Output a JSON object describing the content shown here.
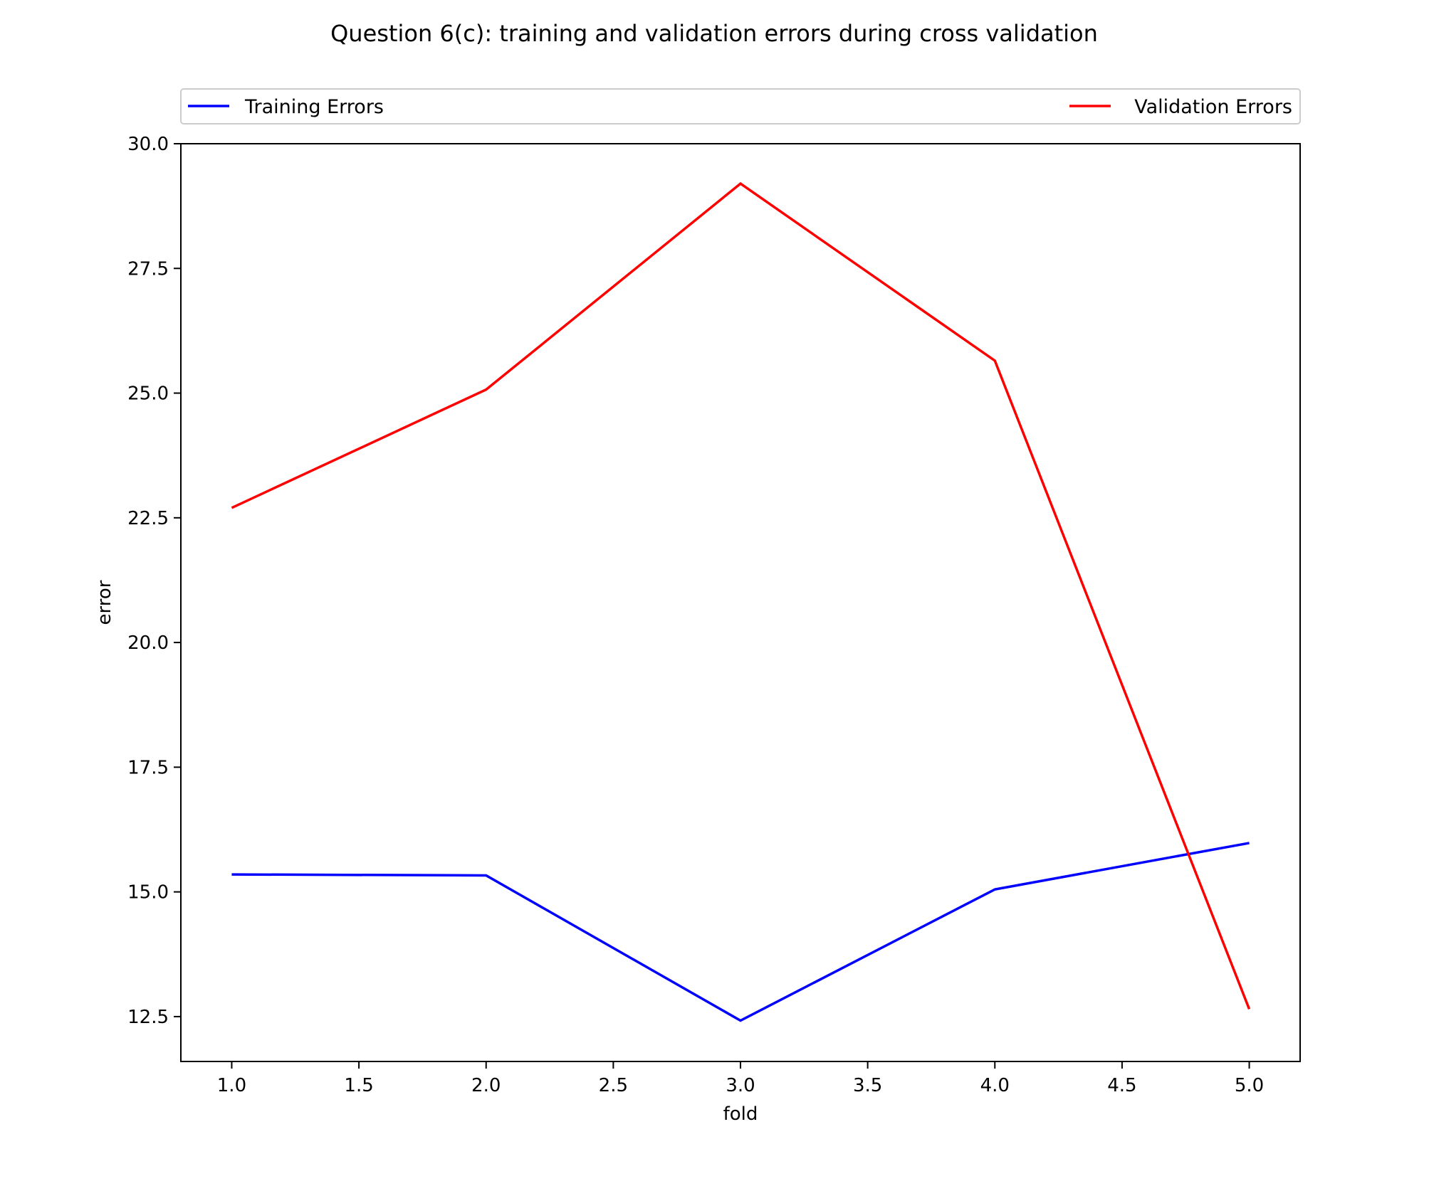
{
  "chart_data": {
    "type": "line",
    "title": "Question 6(c): training and validation errors during cross validation",
    "xlabel": "fold",
    "ylabel": "error",
    "x": [
      1.0,
      2.0,
      3.0,
      4.0,
      5.0
    ],
    "xlim": [
      0.8,
      5.2
    ],
    "ylim": [
      11.6,
      30.0
    ],
    "xticks": [
      1.0,
      1.5,
      2.0,
      2.5,
      3.0,
      3.5,
      4.0,
      4.5,
      5.0
    ],
    "xtick_labels": [
      "1.0",
      "1.5",
      "2.0",
      "2.5",
      "3.0",
      "3.5",
      "4.0",
      "4.5",
      "5.0"
    ],
    "yticks": [
      12.5,
      15.0,
      17.5,
      20.0,
      22.5,
      25.0,
      27.5,
      30.0
    ],
    "ytick_labels": [
      "12.5",
      "15.0",
      "17.5",
      "20.0",
      "22.5",
      "25.0",
      "27.5",
      "30.0"
    ],
    "grid": false,
    "legend_position": "top, spanning plot width",
    "series": [
      {
        "name": "Training Errors",
        "color": "#0000ff",
        "values": [
          15.35,
          15.33,
          12.42,
          15.05,
          15.98
        ]
      },
      {
        "name": "Validation Errors",
        "color": "#ff0000",
        "values": [
          22.7,
          25.07,
          29.2,
          25.65,
          12.65
        ]
      }
    ]
  }
}
